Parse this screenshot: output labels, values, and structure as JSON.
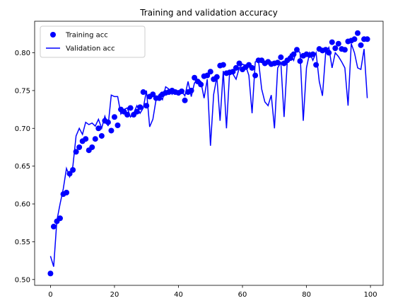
{
  "chart_data": {
    "type": "line",
    "title": "Training and validation accuracy",
    "x": [
      0,
      1,
      2,
      3,
      4,
      5,
      6,
      7,
      8,
      9,
      10,
      11,
      12,
      13,
      14,
      15,
      16,
      17,
      18,
      19,
      20,
      21,
      22,
      23,
      24,
      25,
      26,
      27,
      28,
      29,
      30,
      31,
      32,
      33,
      34,
      35,
      36,
      37,
      38,
      39,
      40,
      41,
      42,
      43,
      44,
      45,
      46,
      47,
      48,
      49,
      50,
      51,
      52,
      53,
      54,
      55,
      56,
      57,
      58,
      59,
      60,
      61,
      62,
      63,
      64,
      65,
      66,
      67,
      68,
      69,
      70,
      71,
      72,
      73,
      74,
      75,
      76,
      77,
      78,
      79,
      80,
      81,
      82,
      83,
      84,
      85,
      86,
      87,
      88,
      89,
      90,
      91,
      92,
      93,
      94,
      95,
      96,
      97,
      98,
      99
    ],
    "series": [
      {
        "name": "Training acc",
        "color": "#0000ff",
        "style": "markers",
        "values": [
          0.508,
          0.57,
          0.577,
          0.581,
          0.613,
          0.615,
          0.64,
          0.645,
          0.669,
          0.675,
          0.683,
          0.686,
          0.671,
          0.675,
          0.686,
          0.7,
          0.69,
          0.71,
          0.708,
          0.697,
          0.715,
          0.704,
          0.725,
          0.722,
          0.718,
          0.727,
          0.718,
          0.722,
          0.728,
          0.748,
          0.73,
          0.742,
          0.745,
          0.74,
          0.74,
          0.745,
          0.747,
          0.748,
          0.75,
          0.748,
          0.747,
          0.749,
          0.737,
          0.748,
          0.75,
          0.767,
          0.762,
          0.758,
          0.769,
          0.77,
          0.775,
          0.765,
          0.768,
          0.783,
          0.784,
          0.773,
          0.774,
          0.775,
          0.78,
          0.786,
          0.778,
          0.781,
          0.784,
          0.78,
          0.77,
          0.79,
          0.79,
          0.786,
          0.788,
          0.785,
          0.786,
          0.787,
          0.794,
          0.786,
          0.79,
          0.793,
          0.798,
          0.804,
          0.789,
          0.796,
          0.798,
          0.797,
          0.798,
          0.784,
          0.805,
          0.803,
          0.804,
          0.8,
          0.814,
          0.806,
          0.812,
          0.805,
          0.804,
          0.815,
          0.816,
          0.818,
          0.826,
          0.81,
          0.818,
          0.818
        ]
      },
      {
        "name": "Validation acc",
        "color": "#0000ff",
        "style": "line",
        "values": [
          0.531,
          0.517,
          0.578,
          0.6,
          0.62,
          0.647,
          0.636,
          0.65,
          0.69,
          0.7,
          0.692,
          0.708,
          0.705,
          0.707,
          0.703,
          0.712,
          0.7,
          0.716,
          0.703,
          0.744,
          0.742,
          0.742,
          0.719,
          0.725,
          0.727,
          0.715,
          0.72,
          0.73,
          0.72,
          0.727,
          0.75,
          0.702,
          0.712,
          0.738,
          0.745,
          0.738,
          0.755,
          0.752,
          0.745,
          0.75,
          0.747,
          0.749,
          0.743,
          0.762,
          0.742,
          0.76,
          0.765,
          0.762,
          0.74,
          0.765,
          0.677,
          0.745,
          0.768,
          0.71,
          0.776,
          0.7,
          0.776,
          0.772,
          0.765,
          0.78,
          0.785,
          0.783,
          0.77,
          0.72,
          0.788,
          0.79,
          0.752,
          0.735,
          0.73,
          0.744,
          0.7,
          0.78,
          0.787,
          0.715,
          0.788,
          0.798,
          0.79,
          0.805,
          0.8,
          0.71,
          0.78,
          0.8,
          0.79,
          0.8,
          0.762,
          0.743,
          0.8,
          0.807,
          0.78,
          0.8,
          0.795,
          0.788,
          0.78,
          0.73,
          0.812,
          0.8,
          0.78,
          0.778,
          0.805,
          0.74
        ]
      }
    ],
    "xlim": [
      -4.95,
      103.95
    ],
    "xticks": [
      0,
      20,
      40,
      60,
      80,
      100
    ],
    "ylim": [
      0.4923,
      0.8417
    ],
    "yticks": [
      {
        "value": 0.5,
        "label": "0.50"
      },
      0.55,
      {
        "value": 0.6,
        "label": "0.60"
      },
      0.65,
      {
        "value": 0.7,
        "label": "0.70"
      },
      0.75,
      {
        "value": 0.8,
        "label": "0.80"
      }
    ],
    "legend": "upper left"
  }
}
